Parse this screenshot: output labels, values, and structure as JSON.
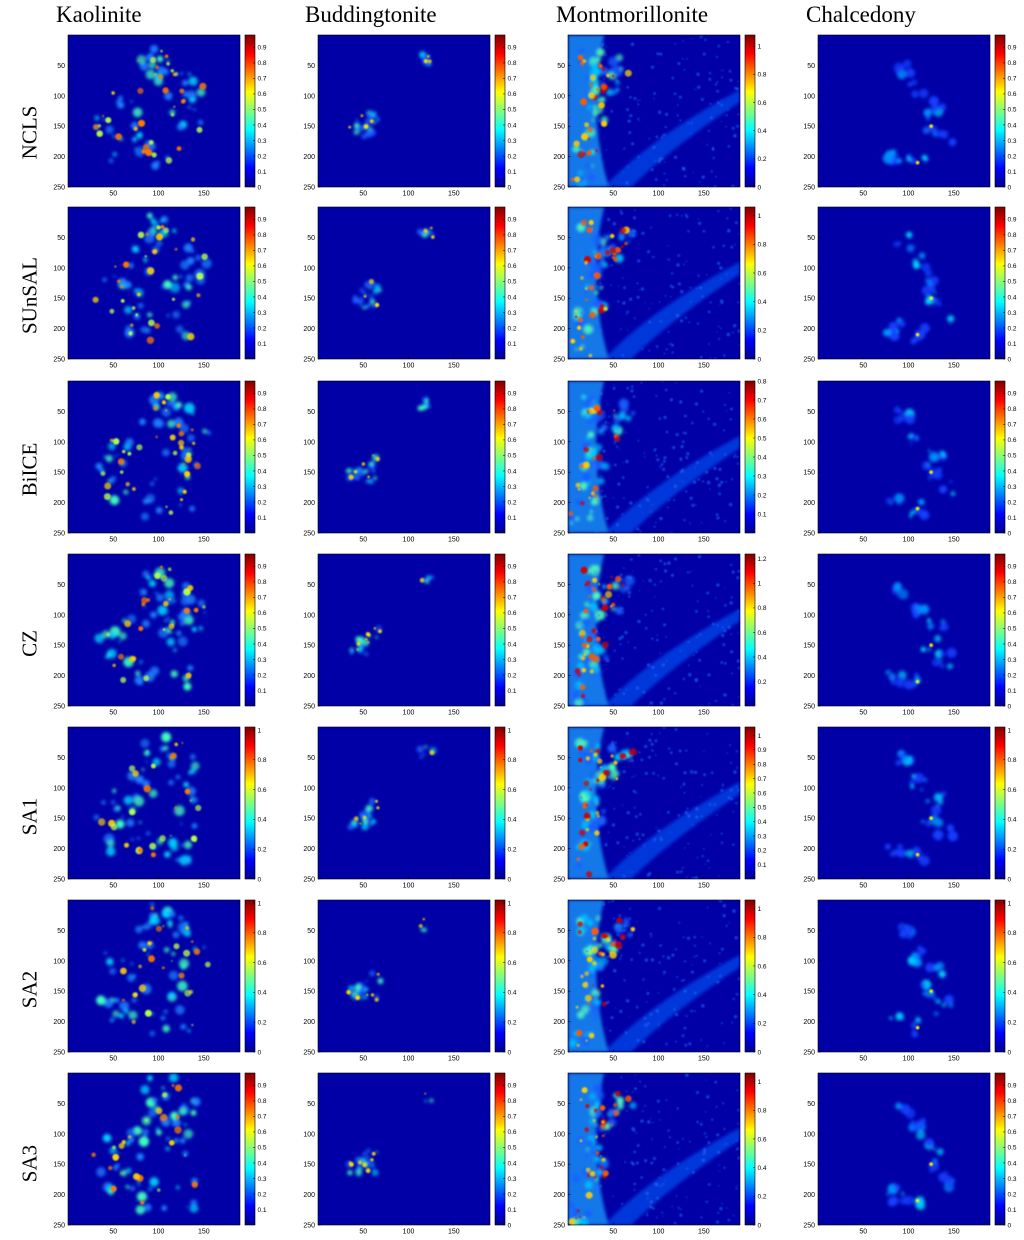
{
  "chart_data": {
    "type": "heatmap",
    "colormap": "jet",
    "columns": [
      "Kaolinite",
      "Buddingtonite",
      "Montmorillonite",
      "Chalcedony"
    ],
    "rows": [
      "NCLS",
      "SUnSAL",
      "BiICE",
      "CZ",
      "SA1",
      "SA2",
      "SA3"
    ],
    "x_ticks": [
      50,
      100,
      150
    ],
    "y_ticks": [
      50,
      100,
      150,
      200,
      250
    ],
    "xlim": [
      0,
      190
    ],
    "ylim": [
      250,
      0
    ],
    "panels": [
      [
        {
          "cmax": 0.98,
          "cticks": [
            "0",
            "0.1",
            "0.2",
            "0.3",
            "0.4",
            "0.5",
            "0.6",
            "0.7",
            "0.8",
            "0.9"
          ]
        },
        {
          "cmax": 0.98,
          "cticks": [
            "0",
            "0.1",
            "0.2",
            "0.3",
            "0.4",
            "0.5",
            "0.6",
            "0.7",
            "0.8",
            "0.9"
          ]
        },
        {
          "cmax": 1.08,
          "cticks": [
            "0",
            "0.2",
            "0.4",
            "0.6",
            "0.8",
            "1"
          ]
        },
        {
          "cmax": 0.98,
          "cticks": [
            "0",
            "0.1",
            "0.2",
            "0.3",
            "0.4",
            "0.5",
            "0.6",
            "0.7",
            "0.8",
            "0.9"
          ]
        }
      ],
      [
        {
          "cmax": 0.98,
          "cticks": [
            "0.1",
            "0.2",
            "0.3",
            "0.4",
            "0.5",
            "0.6",
            "0.7",
            "0.8",
            "0.9"
          ]
        },
        {
          "cmax": 0.98,
          "cticks": [
            "0.1",
            "0.2",
            "0.3",
            "0.4",
            "0.5",
            "0.6",
            "0.7",
            "0.8",
            "0.9"
          ]
        },
        {
          "cmax": 1.06,
          "cticks": [
            "0",
            "0.2",
            "0.4",
            "0.6",
            "0.8",
            "1"
          ]
        },
        {
          "cmax": 0.98,
          "cticks": [
            "0",
            "0.1",
            "0.2",
            "0.3",
            "0.4",
            "0.5",
            "0.6",
            "0.7",
            "0.8",
            "0.9"
          ]
        }
      ],
      [
        {
          "cmax": 0.98,
          "cticks": [
            "0.1",
            "0.2",
            "0.3",
            "0.4",
            "0.5",
            "0.6",
            "0.7",
            "0.8",
            "0.9"
          ]
        },
        {
          "cmax": 0.98,
          "cticks": [
            "0.1",
            "0.2",
            "0.3",
            "0.4",
            "0.5",
            "0.6",
            "0.7",
            "0.8",
            "0.9"
          ]
        },
        {
          "cmax": 0.8,
          "cticks": [
            "0.1",
            "0.2",
            "0.3",
            "0.4",
            "0.5",
            "0.6",
            "0.7",
            "0.8"
          ]
        },
        {
          "cmax": 0.98,
          "cticks": [
            "0",
            "0.1",
            "0.2",
            "0.3",
            "0.4",
            "0.5",
            "0.6",
            "0.7",
            "0.8",
            "0.9"
          ]
        }
      ],
      [
        {
          "cmax": 0.98,
          "cticks": [
            "0.1",
            "0.2",
            "0.3",
            "0.4",
            "0.5",
            "0.6",
            "0.7",
            "0.8",
            "0.9"
          ]
        },
        {
          "cmax": 0.98,
          "cticks": [
            "0.1",
            "0.2",
            "0.3",
            "0.4",
            "0.5",
            "0.6",
            "0.7",
            "0.8",
            "0.9"
          ]
        },
        {
          "cmax": 1.24,
          "cticks": [
            "0.2",
            "0.4",
            "0.6",
            "0.8",
            "1",
            "1.2"
          ]
        },
        {
          "cmax": 0.98,
          "cticks": [
            "0",
            "0.1",
            "0.2",
            "0.3",
            "0.4",
            "0.5",
            "0.6",
            "0.7",
            "0.8",
            "0.9"
          ]
        }
      ],
      [
        {
          "cmax": 1.02,
          "cticks": [
            "0",
            "0.2",
            "0.4",
            "0.6",
            "0.8",
            "1"
          ]
        },
        {
          "cmax": 1.02,
          "cticks": [
            "0",
            "0.2",
            "0.4",
            "0.6",
            "0.8",
            "1"
          ]
        },
        {
          "cmax": 1.06,
          "cticks": [
            "0.1",
            "0.2",
            "0.3",
            "0.4",
            "0.5",
            "0.6",
            "0.7",
            "0.8",
            "0.9",
            "1"
          ]
        },
        {
          "cmax": 1.02,
          "cticks": [
            "0",
            "0.2",
            "0.4",
            "0.6",
            "0.8",
            "1"
          ]
        }
      ],
      [
        {
          "cmax": 1.02,
          "cticks": [
            "0",
            "0.2",
            "0.4",
            "0.6",
            "0.8",
            "1"
          ]
        },
        {
          "cmax": 1.02,
          "cticks": [
            "0",
            "0.2",
            "0.4",
            "0.6",
            "0.8",
            "1"
          ]
        },
        {
          "cmax": 1.06,
          "cticks": [
            "0",
            "0.2",
            "0.4",
            "0.6",
            "0.8",
            "1"
          ]
        },
        {
          "cmax": 1.02,
          "cticks": [
            "0",
            "0.2",
            "0.4",
            "0.6",
            "0.8",
            "1"
          ]
        }
      ],
      [
        {
          "cmax": 0.98,
          "cticks": [
            "0.1",
            "0.2",
            "0.3",
            "0.4",
            "0.5",
            "0.6",
            "0.7",
            "0.8",
            "0.9"
          ]
        },
        {
          "cmax": 0.98,
          "cticks": [
            "0",
            "0.1",
            "0.2",
            "0.3",
            "0.4",
            "0.5",
            "0.6",
            "0.7",
            "0.8",
            "0.9"
          ]
        },
        {
          "cmax": 1.06,
          "cticks": [
            "0",
            "0.2",
            "0.4",
            "0.6",
            "0.8",
            "1"
          ]
        },
        {
          "cmax": 0.98,
          "cticks": [
            "0",
            "0.1",
            "0.2",
            "0.3",
            "0.4",
            "0.5",
            "0.6",
            "0.7",
            "0.8",
            "0.9"
          ]
        }
      ]
    ]
  }
}
